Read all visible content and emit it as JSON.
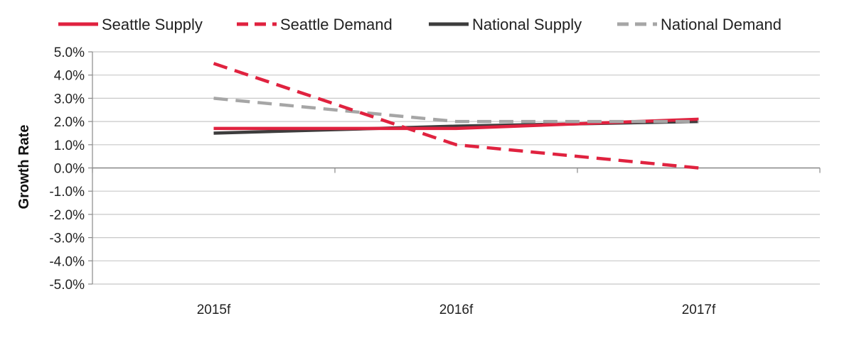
{
  "chart_data": {
    "type": "line",
    "title": "",
    "xlabel": "",
    "ylabel": "Growth Rate",
    "categories": [
      "2015f",
      "2016f",
      "2017f"
    ],
    "ylim": [
      -5.0,
      5.0
    ],
    "yticks": [
      5.0,
      4.0,
      3.0,
      2.0,
      1.0,
      0.0,
      -1.0,
      -2.0,
      -3.0,
      -4.0,
      -5.0
    ],
    "ytick_labels": [
      "5.0%",
      "4.0%",
      "3.0%",
      "2.0%",
      "1.0%",
      "0.0%",
      "-1.0%",
      "-2.0%",
      "-3.0%",
      "-4.0%",
      "-5.0%"
    ],
    "grid": true,
    "legend_position": "top",
    "series": [
      {
        "name": "Seattle Supply",
        "values": [
          1.7,
          1.7,
          2.1
        ],
        "color": "#e0223f",
        "dash": "solid"
      },
      {
        "name": "Seattle Demand",
        "values": [
          4.5,
          1.0,
          0.0
        ],
        "color": "#e0223f",
        "dash": "dashed"
      },
      {
        "name": "National Supply",
        "values": [
          1.5,
          1.8,
          2.0
        ],
        "color": "#3d3d3d",
        "dash": "solid"
      },
      {
        "name": "National Demand",
        "values": [
          3.0,
          2.0,
          2.0
        ],
        "color": "#a6a6a6",
        "dash": "dashed"
      }
    ]
  }
}
